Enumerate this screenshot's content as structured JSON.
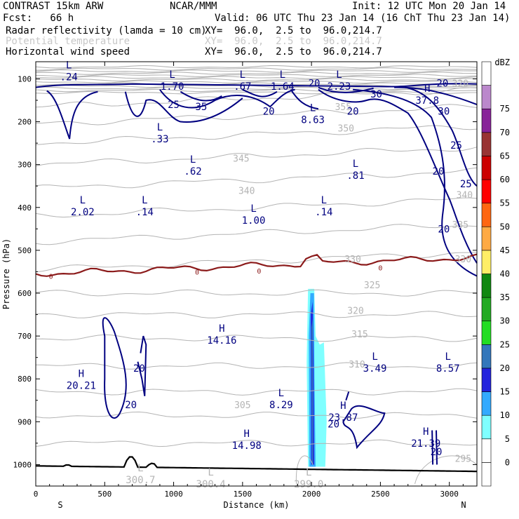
{
  "header": {
    "model": "CONTRAST 15km ARW",
    "org": "NCAR/MMM",
    "init": "Init: 12 UTC Mon 20 Jan 14",
    "fcst": "Fcst:   66 h",
    "valid": "Valid: 06 UTC Thu 23 Jan 14 (16 ChT Thu 23 Jan 14)",
    "fields": [
      {
        "name": "Radar reflectivity (lamda = 10 cm)",
        "xy": "XY=  96.0,  2.5 to  96.0,214.7",
        "color": "#000000"
      },
      {
        "name": "Potential temperature",
        "xy": "XY=  96.0,  2.5 to  96.0,214.7",
        "color": "#c8c8c8"
      },
      {
        "name": "Horizontal wind speed",
        "xy": "XY=  96.0,  2.5 to  96.0,214.7",
        "color": "#000080"
      }
    ]
  },
  "chart_data": {
    "type": "contour",
    "xlabel": "Distance (km)",
    "ylabel": "Pressure (hPa)",
    "xlim": [
      0,
      3200
    ],
    "ylim": [
      1050,
      60
    ],
    "x_ticks": [
      0,
      500,
      1000,
      1500,
      2000,
      2500,
      3000
    ],
    "y_ticks": [
      100,
      200,
      300,
      400,
      500,
      600,
      700,
      800,
      900,
      1000
    ],
    "left_end_label": "S",
    "right_end_label": "N",
    "colorbar": {
      "unit": "dBZ",
      "levels": [
        0,
        5,
        10,
        15,
        20,
        25,
        30,
        35,
        40,
        45,
        50,
        55,
        60,
        65,
        70,
        75
      ],
      "colors": [
        "#ffffff",
        "#7fffff",
        "#33aaff",
        "#2222dd",
        "#3377bb",
        "#22dd22",
        "#22aa22",
        "#118811",
        "#ffee66",
        "#ffaa44",
        "#ff6611",
        "#ff0000",
        "#cc0000",
        "#993333",
        "#882299",
        "#bb88cc"
      ]
    },
    "theta_labels": [
      {
        "text": "320",
        "x": 3080,
        "p": 110
      },
      {
        "text": "355",
        "x": 2230,
        "p": 165
      },
      {
        "text": "350",
        "x": 2250,
        "p": 215
      },
      {
        "text": "345",
        "x": 1490,
        "p": 285
      },
      {
        "text": "340",
        "x": 1530,
        "p": 360
      },
      {
        "text": "340",
        "x": 3110,
        "p": 370
      },
      {
        "text": "335",
        "x": 3080,
        "p": 440
      },
      {
        "text": "330",
        "x": 2300,
        "p": 520
      },
      {
        "text": "330",
        "x": 3100,
        "p": 520
      },
      {
        "text": "325",
        "x": 2440,
        "p": 580
      },
      {
        "text": "320",
        "x": 2320,
        "p": 640
      },
      {
        "text": "315",
        "x": 2350,
        "p": 695
      },
      {
        "text": "310",
        "x": 2330,
        "p": 765
      },
      {
        "text": "305",
        "x": 1500,
        "p": 860
      },
      {
        "text": "295",
        "x": 3100,
        "p": 985
      }
    ],
    "wind_labels": [
      {
        "text": "25",
        "x": 1000,
        "p": 160
      },
      {
        "text": "35",
        "x": 1200,
        "p": 165
      },
      {
        "text": "20",
        "x": 1690,
        "p": 175
      },
      {
        "text": "30",
        "x": 2470,
        "p": 135
      },
      {
        "text": "20",
        "x": 2300,
        "p": 175
      },
      {
        "text": "20",
        "x": 2950,
        "p": 110
      },
      {
        "text": "30",
        "x": 2960,
        "p": 175
      },
      {
        "text": "25",
        "x": 3050,
        "p": 255
      },
      {
        "text": "20",
        "x": 2920,
        "p": 315
      },
      {
        "text": "25",
        "x": 3120,
        "p": 345
      },
      {
        "text": "20",
        "x": 2960,
        "p": 450
      },
      {
        "text": "20",
        "x": 2020,
        "p": 110
      },
      {
        "text": "20",
        "x": 750,
        "p": 775
      },
      {
        "text": "20",
        "x": 690,
        "p": 860
      },
      {
        "text": "20",
        "x": 2160,
        "p": 905
      },
      {
        "text": "20",
        "x": 2905,
        "p": 970
      }
    ],
    "extrema": [
      {
        "type": "L",
        "value": ".24",
        "x": 240,
        "p": 90
      },
      {
        "type": "L",
        "value": "1.70",
        "x": 990,
        "p": 112
      },
      {
        "type": "L",
        "value": ".67",
        "x": 1500,
        "p": 112
      },
      {
        "type": "L",
        "value": "1.64",
        "x": 1790,
        "p": 112
      },
      {
        "type": "L",
        "value": "2.23",
        "x": 2200,
        "p": 112
      },
      {
        "type": "H",
        "value": "37.8",
        "x": 2840,
        "p": 145
      },
      {
        "type": "L",
        "value": "8.63",
        "x": 2010,
        "p": 190
      },
      {
        "type": "L",
        "value": ".33",
        "x": 900,
        "p": 235
      },
      {
        "type": "L",
        "value": ".62",
        "x": 1140,
        "p": 310
      },
      {
        "type": "L",
        "value": ".81",
        "x": 2320,
        "p": 320
      },
      {
        "type": "L",
        "value": "2.02",
        "x": 340,
        "p": 405
      },
      {
        "type": "L",
        "value": ".14",
        "x": 790,
        "p": 405
      },
      {
        "type": "L",
        "value": "1.00",
        "x": 1580,
        "p": 425
      },
      {
        "type": "L",
        "value": ".14",
        "x": 2090,
        "p": 405
      },
      {
        "type": "H",
        "value": "14.16",
        "x": 1350,
        "p": 705
      },
      {
        "type": "L",
        "value": "3.49",
        "x": 2460,
        "p": 770
      },
      {
        "type": "L",
        "value": "8.57",
        "x": 2990,
        "p": 770
      },
      {
        "type": "H",
        "value": "20.21",
        "x": 330,
        "p": 810
      },
      {
        "type": "L",
        "value": "8.29",
        "x": 1780,
        "p": 855
      },
      {
        "type": "H",
        "value": "23.87",
        "x": 2230,
        "p": 885
      },
      {
        "type": "H",
        "value": "21.39",
        "x": 2830,
        "p": 945
      },
      {
        "type": "H",
        "value": "14.98",
        "x": 1530,
        "p": 950
      },
      {
        "type": "L",
        "value": "300.7",
        "x": 760,
        "p": 1030
      },
      {
        "type": "L",
        "value": "300.4",
        "x": 1270,
        "p": 1040
      },
      {
        "type": "L",
        "value": "299.0",
        "x": 1980,
        "p": 1040
      }
    ],
    "freezing_level_label": "0"
  }
}
